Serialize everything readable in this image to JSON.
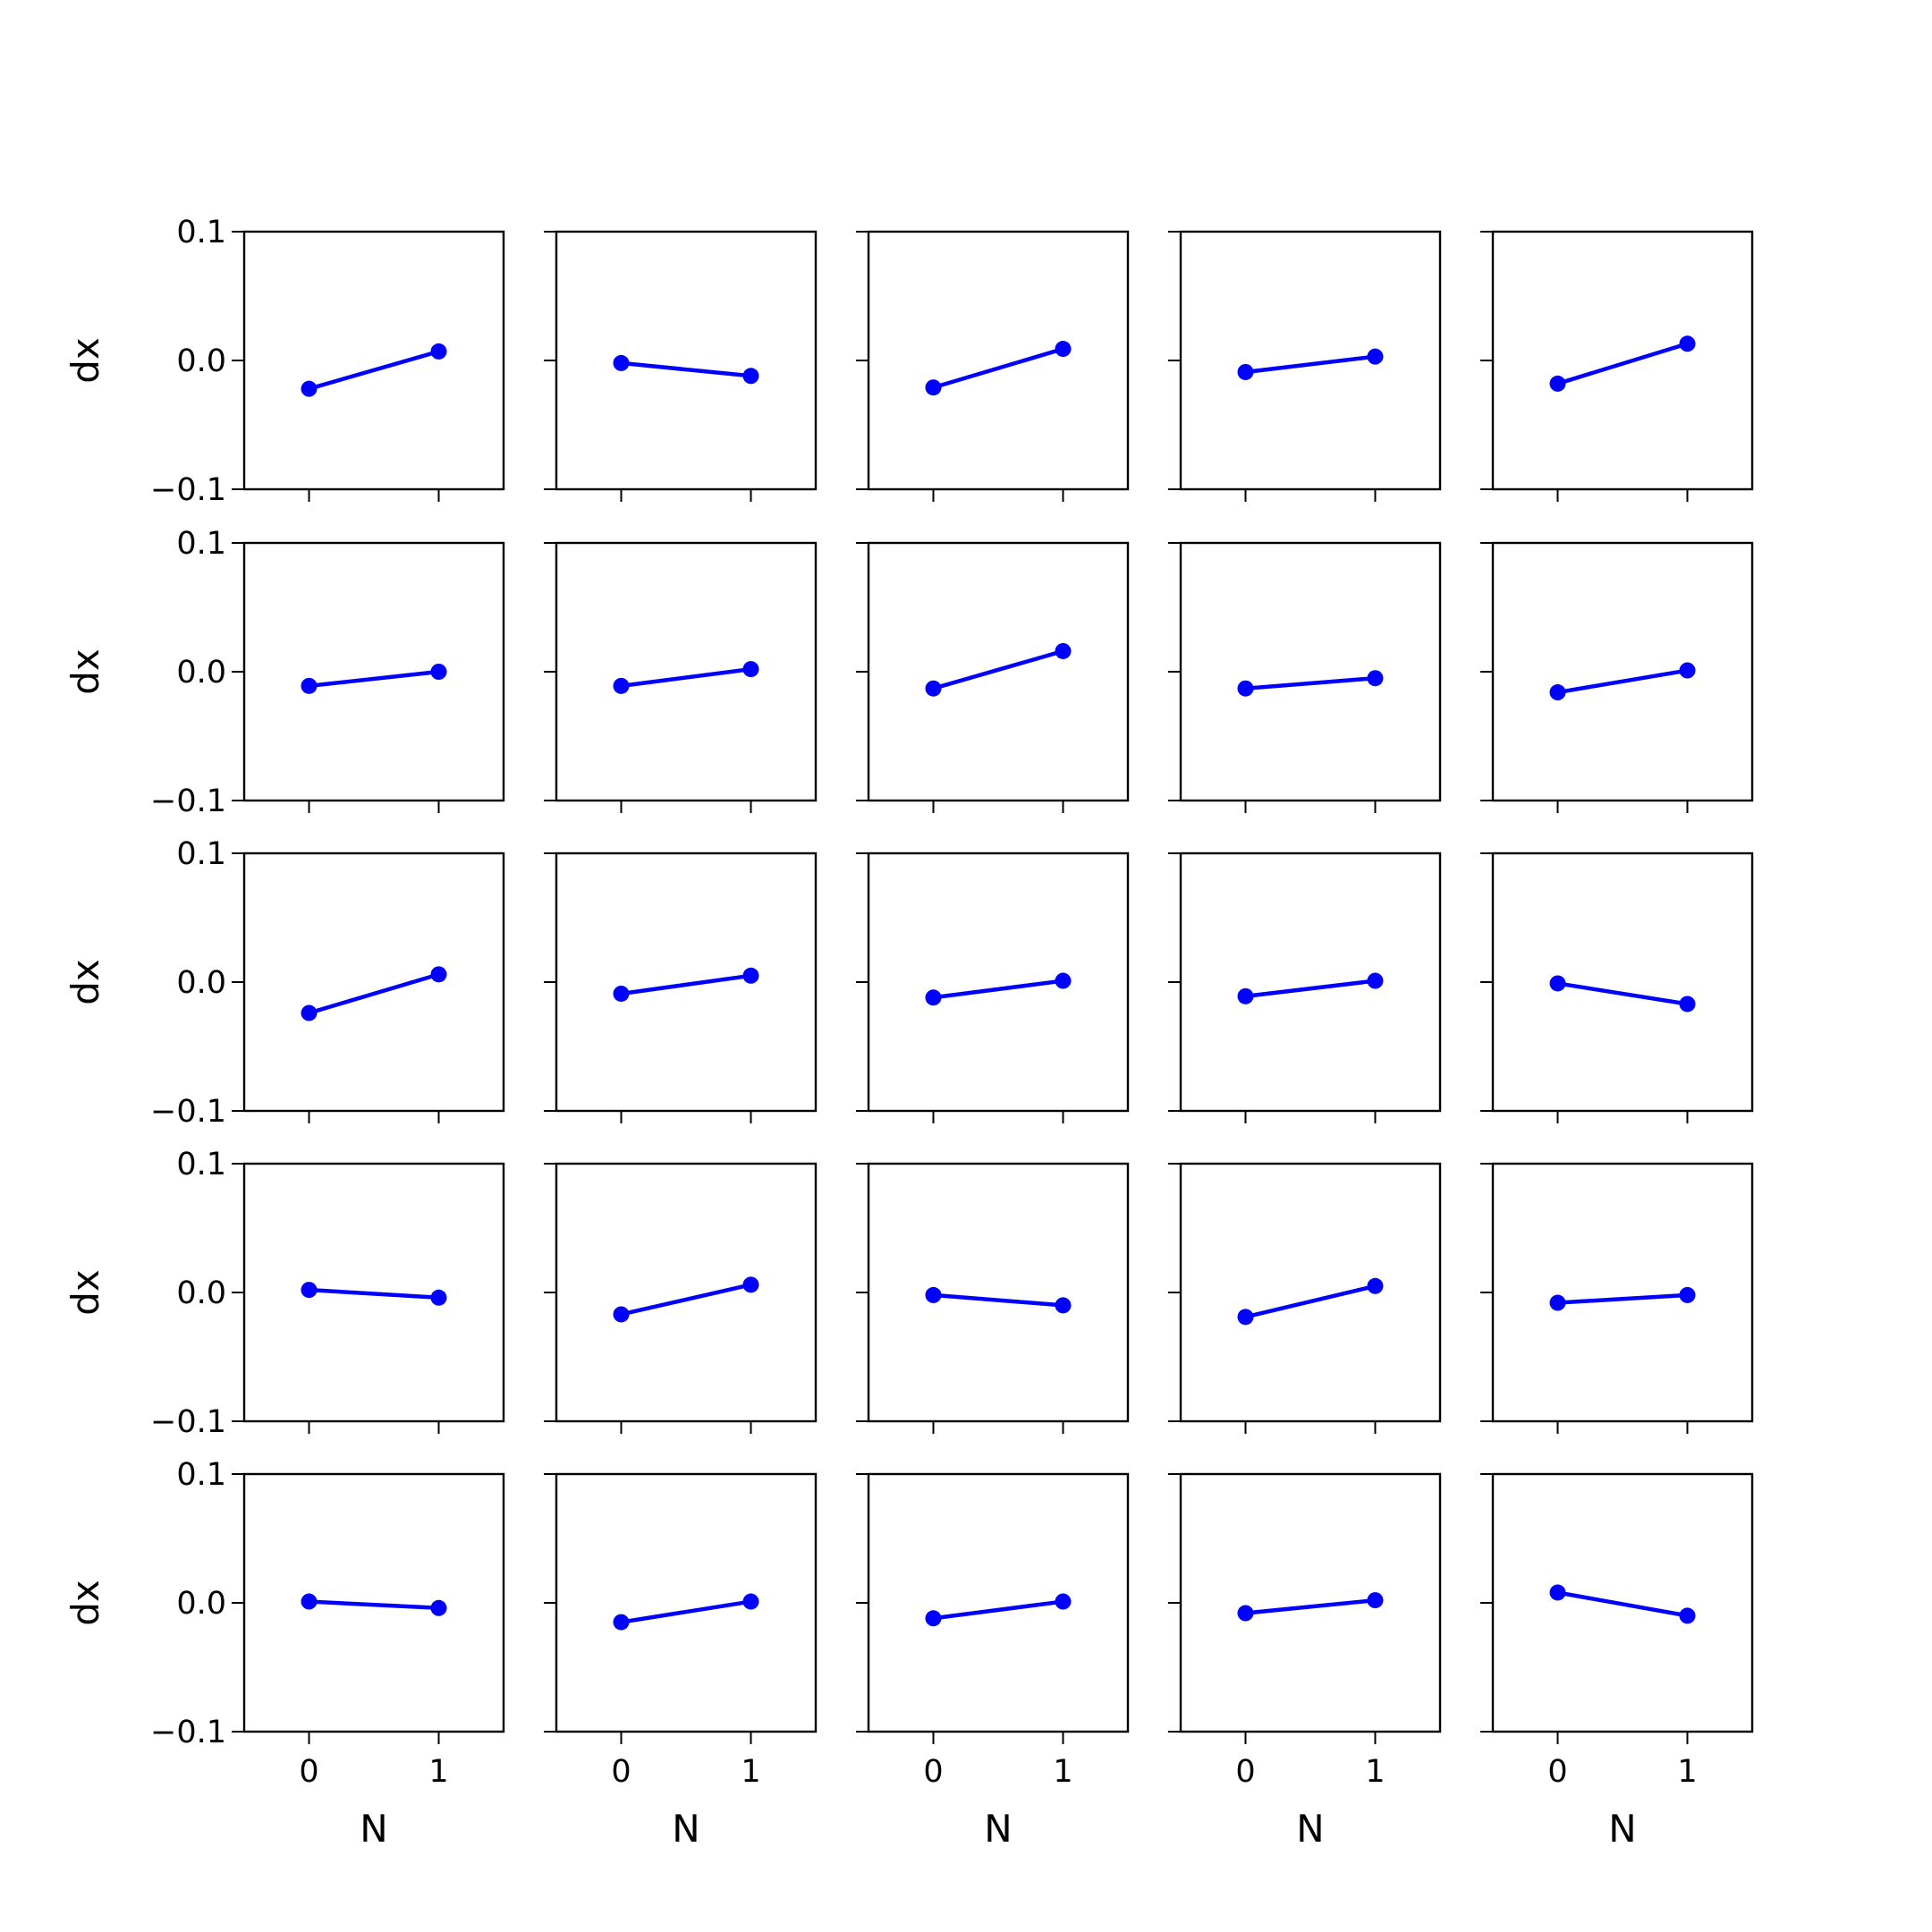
{
  "chart_data": {
    "type": "line",
    "layout": "5x5 grid of subplots",
    "xlabel": "N",
    "ylabel": "dx",
    "x": [
      0,
      1
    ],
    "xticks": [
      "0",
      "1"
    ],
    "xlim": [
      -0.5,
      1.5
    ],
    "ylim": [
      -0.1,
      0.1
    ],
    "yticks": [
      "0.1",
      "0.0",
      "−0.1"
    ],
    "ytick_values": [
      0.1,
      0.0,
      -0.1
    ],
    "color": "#0000ff",
    "marker": "circle",
    "grid": false,
    "panels": [
      {
        "values": [
          -0.022,
          0.007
        ]
      },
      {
        "values": [
          -0.002,
          -0.012
        ]
      },
      {
        "values": [
          -0.021,
          0.009
        ]
      },
      {
        "values": [
          -0.009,
          0.003
        ]
      },
      {
        "values": [
          -0.018,
          0.013
        ]
      },
      {
        "values": [
          -0.011,
          0.0
        ]
      },
      {
        "values": [
          -0.011,
          0.002
        ]
      },
      {
        "values": [
          -0.013,
          0.016
        ]
      },
      {
        "values": [
          -0.013,
          -0.005
        ]
      },
      {
        "values": [
          -0.016,
          0.001
        ]
      },
      {
        "values": [
          -0.024,
          0.006
        ]
      },
      {
        "values": [
          -0.009,
          0.005
        ]
      },
      {
        "values": [
          -0.012,
          0.001
        ]
      },
      {
        "values": [
          -0.011,
          0.001
        ]
      },
      {
        "values": [
          -0.001,
          -0.017
        ]
      },
      {
        "values": [
          0.002,
          -0.004
        ]
      },
      {
        "values": [
          -0.017,
          0.006
        ]
      },
      {
        "values": [
          -0.002,
          -0.01
        ]
      },
      {
        "values": [
          -0.019,
          0.005
        ]
      },
      {
        "values": [
          -0.008,
          -0.002
        ]
      },
      {
        "values": [
          0.001,
          -0.004
        ]
      },
      {
        "values": [
          -0.015,
          0.001
        ]
      },
      {
        "values": [
          -0.012,
          0.001
        ]
      },
      {
        "values": [
          -0.008,
          0.002
        ]
      },
      {
        "values": [
          0.008,
          -0.01
        ]
      }
    ]
  }
}
